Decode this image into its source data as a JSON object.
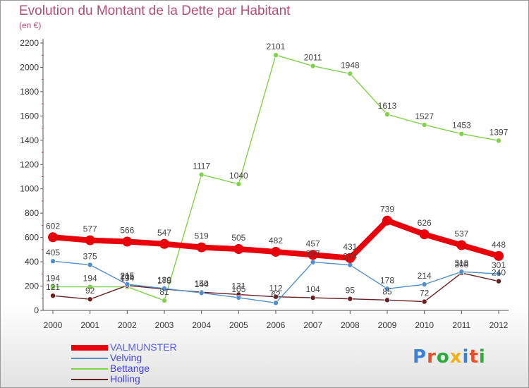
{
  "title": "Evolution du Montant de la Dette par Habitant",
  "subtitle": "(en €)",
  "logo": {
    "text": "Proxiti",
    "colors": [
      "#3b7fd6",
      "#e8502c",
      "#2eaa3b",
      "#f2b211",
      "#3b7fd6",
      "#e8502c",
      "#2eaa3b"
    ]
  },
  "chart_data": {
    "type": "line",
    "x": [
      2000,
      2001,
      2002,
      2003,
      2004,
      2005,
      2006,
      2007,
      2008,
      2009,
      2010,
      2011,
      2012
    ],
    "ylim": [
      0,
      2200
    ],
    "y_ticks": [
      0,
      200,
      400,
      600,
      800,
      1000,
      1200,
      1400,
      1600,
      1800,
      2000,
      2200
    ],
    "grid": false,
    "legend_position": "bottom-left",
    "series": [
      {
        "name": "VALMUNSTER",
        "color": "#e8000b",
        "emphasis": true,
        "values": [
          602,
          577,
          566,
          547,
          519,
          505,
          482,
          457,
          431,
          739,
          626,
          537,
          448
        ]
      },
      {
        "name": "Velving",
        "color": "#4f8fcc",
        "values": [
          405,
          375,
          215,
          180,
          144,
          105,
          62,
          397,
          374,
          178,
          214,
          318,
          301
        ]
      },
      {
        "name": "Bettange",
        "color": "#7fd249",
        "values": [
          194,
          194,
          194,
          81,
          1117,
          1040,
          2101,
          2011,
          1948,
          1613,
          1527,
          1453,
          1397
        ]
      },
      {
        "name": "Holling",
        "color": "#6b1e22",
        "values": [
          121,
          92,
          205,
          175,
          150,
          131,
          112,
          104,
          95,
          85,
          72,
          308,
          240
        ]
      }
    ]
  }
}
